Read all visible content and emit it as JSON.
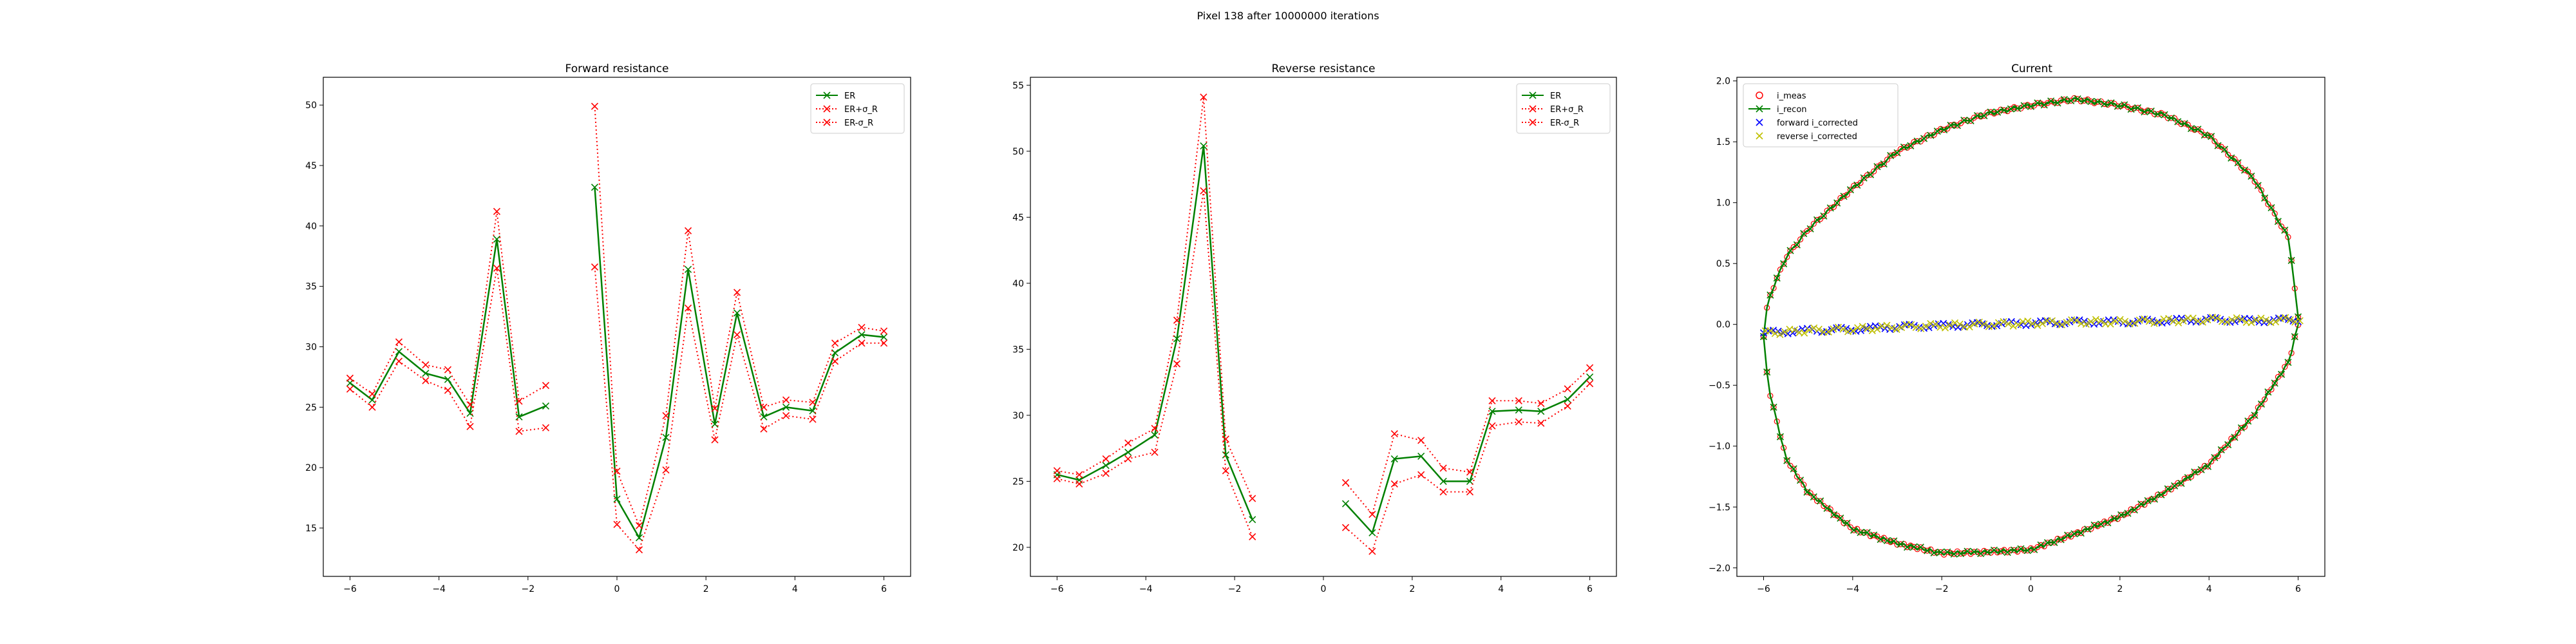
{
  "figure": {
    "suptitle": "Pixel 138 after 10000000 iterations"
  },
  "chart_data": [
    {
      "type": "line",
      "title": "Forward resistance",
      "xlabel": "",
      "ylabel": "",
      "xlim": [
        -6.6,
        6.6
      ],
      "ylim": [
        11,
        52.3
      ],
      "xticks": [
        -6,
        -4,
        -2,
        0,
        2,
        4,
        6
      ],
      "yticks": [
        15,
        20,
        25,
        30,
        35,
        40,
        45,
        50
      ],
      "legend_loc": "upper right",
      "series": [
        {
          "name": "ER",
          "color": "#008000",
          "style": "solid",
          "marker": "x",
          "points": [
            [
              -6,
              27
            ],
            [
              -5.5,
              25.6
            ],
            [
              -4.9,
              29.6
            ],
            [
              -4.3,
              27.8
            ],
            [
              -3.8,
              27.3
            ],
            [
              -3.3,
              24.5
            ],
            [
              -2.7,
              38.9
            ],
            [
              -2.2,
              24.2
            ],
            [
              -1.6,
              25.1
            ],
            null,
            [
              -0.5,
              43.2
            ],
            [
              0,
              17.4
            ],
            [
              0.5,
              14.2
            ],
            [
              1.1,
              22.5
            ],
            [
              1.6,
              36.4
            ],
            [
              2.2,
              23.6
            ],
            [
              2.7,
              32.8
            ],
            [
              3.3,
              24.2
            ],
            [
              3.8,
              25
            ],
            [
              4.4,
              24.7
            ],
            [
              4.9,
              29.5
            ],
            [
              5.5,
              31
            ],
            [
              6,
              30.8
            ]
          ]
        },
        {
          "name": "ER+σ_R",
          "color": "#ff0000",
          "style": "dotted",
          "marker": "x",
          "points": [
            [
              -6,
              27.4
            ],
            [
              -5.5,
              26.1
            ],
            [
              -4.9,
              30.4
            ],
            [
              -4.3,
              28.5
            ],
            [
              -3.8,
              28.1
            ],
            [
              -3.3,
              25.2
            ],
            [
              -2.7,
              41.2
            ],
            [
              -2.2,
              25.5
            ],
            [
              -1.6,
              26.8
            ],
            null,
            [
              -0.5,
              49.9
            ],
            [
              0,
              19.7
            ],
            [
              0.5,
              15.2
            ],
            [
              1.1,
              24.3
            ],
            [
              1.6,
              39.6
            ],
            [
              2.2,
              24.9
            ],
            [
              2.7,
              34.5
            ],
            [
              3.3,
              25
            ],
            [
              3.8,
              25.6
            ],
            [
              4.4,
              25.4
            ],
            [
              4.9,
              30.3
            ],
            [
              5.5,
              31.6
            ],
            [
              6,
              31.3
            ]
          ]
        },
        {
          "name": "ER-σ_R",
          "color": "#ff0000",
          "style": "dotted",
          "marker": "x",
          "points": [
            [
              -6,
              26.5
            ],
            [
              -5.5,
              25
            ],
            [
              -4.9,
              28.8
            ],
            [
              -4.3,
              27.2
            ],
            [
              -3.8,
              26.4
            ],
            [
              -3.3,
              23.4
            ],
            [
              -2.7,
              36.5
            ],
            [
              -2.2,
              23
            ],
            [
              -1.6,
              23.3
            ],
            null,
            [
              -0.5,
              36.6
            ],
            [
              0,
              15.3
            ],
            [
              0.5,
              13.2
            ],
            [
              1.1,
              19.8
            ],
            [
              1.6,
              33.2
            ],
            [
              2.2,
              22.3
            ],
            [
              2.7,
              31
            ],
            [
              3.3,
              23.2
            ],
            [
              3.8,
              24.3
            ],
            [
              4.4,
              24
            ],
            [
              4.9,
              28.8
            ],
            [
              5.5,
              30.3
            ],
            [
              6,
              30.3
            ]
          ]
        }
      ]
    },
    {
      "type": "line",
      "title": "Reverse resistance",
      "xlabel": "",
      "ylabel": "",
      "xlim": [
        -6.6,
        6.6
      ],
      "ylim": [
        17.8,
        55.6
      ],
      "xticks": [
        -6,
        -4,
        -2,
        0,
        2,
        4,
        6
      ],
      "yticks": [
        20,
        25,
        30,
        35,
        40,
        45,
        50,
        55
      ],
      "legend_loc": "upper right",
      "series": [
        {
          "name": "ER",
          "color": "#008000",
          "style": "solid",
          "marker": "x",
          "points": [
            [
              -6,
              25.5
            ],
            [
              -5.5,
              25.1
            ],
            [
              -4.9,
              26.2
            ],
            [
              -4.4,
              27.2
            ],
            [
              -3.8,
              28.5
            ],
            [
              -3.3,
              35.8
            ],
            [
              -2.7,
              50.4
            ],
            [
              -2.2,
              27
            ],
            [
              -1.6,
              22.1
            ],
            null,
            [
              0.5,
              23.3
            ],
            [
              1.1,
              21.1
            ],
            [
              1.6,
              26.7
            ],
            [
              2.2,
              26.9
            ],
            [
              2.7,
              25
            ],
            [
              3.3,
              25
            ],
            [
              3.8,
              30.3
            ],
            [
              4.4,
              30.4
            ],
            [
              4.9,
              30.3
            ],
            [
              5.5,
              31.2
            ],
            [
              6,
              32.9
            ]
          ]
        },
        {
          "name": "ER+σ_R",
          "color": "#ff0000",
          "style": "dotted",
          "marker": "x",
          "points": [
            [
              -6,
              25.8
            ],
            [
              -5.5,
              25.5
            ],
            [
              -4.9,
              26.7
            ],
            [
              -4.4,
              27.9
            ],
            [
              -3.8,
              29
            ],
            [
              -3.3,
              37.2
            ],
            [
              -2.7,
              54.1
            ],
            [
              -2.2,
              28.2
            ],
            [
              -1.6,
              23.7
            ],
            null,
            [
              0.5,
              24.9
            ],
            [
              1.1,
              22.5
            ],
            [
              1.6,
              28.6
            ],
            [
              2.2,
              28.1
            ],
            [
              2.7,
              26
            ],
            [
              3.3,
              25.7
            ],
            [
              3.8,
              31.1
            ],
            [
              4.4,
              31.1
            ],
            [
              4.9,
              30.9
            ],
            [
              5.5,
              32
            ],
            [
              6,
              33.6
            ]
          ]
        },
        {
          "name": "ER-σ_R",
          "color": "#ff0000",
          "style": "dotted",
          "marker": "x",
          "points": [
            [
              -6,
              25.2
            ],
            [
              -5.5,
              24.8
            ],
            [
              -4.9,
              25.6
            ],
            [
              -4.4,
              26.7
            ],
            [
              -3.8,
              27.2
            ],
            [
              -3.3,
              33.9
            ],
            [
              -2.7,
              47
            ],
            [
              -2.2,
              25.8
            ],
            [
              -1.6,
              20.8
            ],
            null,
            [
              0.5,
              21.5
            ],
            [
              1.1,
              19.7
            ],
            [
              1.6,
              24.8
            ],
            [
              2.2,
              25.5
            ],
            [
              2.7,
              24.2
            ],
            [
              3.3,
              24.2
            ],
            [
              3.8,
              29.2
            ],
            [
              4.4,
              29.5
            ],
            [
              4.9,
              29.4
            ],
            [
              5.5,
              30.7
            ],
            [
              6,
              32.4
            ]
          ]
        }
      ]
    },
    {
      "type": "scatter",
      "title": "Current",
      "xlabel": "",
      "ylabel": "",
      "xlim": [
        -6.6,
        6.6
      ],
      "ylim": [
        -2.07,
        2.03
      ],
      "xticks": [
        -6,
        -4,
        -2,
        0,
        2,
        4,
        6
      ],
      "yticks": [
        -2.0,
        -1.5,
        -1.0,
        -0.5,
        0.0,
        0.5,
        1.0,
        1.5,
        2.0
      ],
      "ytick_labels": [
        "−2.0",
        "−1.5",
        "−1.0",
        "−0.5",
        "0.0",
        "0.5",
        "1.0",
        "1.5",
        "2.0"
      ],
      "legend_loc": "upper left",
      "loop": {
        "x_range": [
          -6,
          6
        ],
        "upper_branch": [
          [
            -6,
            -0.1
          ],
          [
            -5.9,
            0.2
          ],
          [
            -5.5,
            0.55
          ],
          [
            -5,
            0.78
          ],
          [
            -4,
            1.12
          ],
          [
            -3,
            1.42
          ],
          [
            -2,
            1.6
          ],
          [
            -1,
            1.73
          ],
          [
            0,
            1.8
          ],
          [
            1,
            1.85
          ],
          [
            2,
            1.8
          ],
          [
            3,
            1.72
          ],
          [
            4,
            1.55
          ],
          [
            5,
            1.2
          ],
          [
            5.8,
            0.7
          ],
          [
            6,
            0.05
          ]
        ],
        "lower_branch": [
          [
            -6,
            -0.1
          ],
          [
            -5.9,
            -0.5
          ],
          [
            -5.5,
            -1.1
          ],
          [
            -5,
            -1.38
          ],
          [
            -4,
            -1.68
          ],
          [
            -3,
            -1.8
          ],
          [
            -2,
            -1.88
          ],
          [
            -1,
            -1.87
          ],
          [
            0,
            -1.85
          ],
          [
            1,
            -1.72
          ],
          [
            2,
            -1.58
          ],
          [
            3,
            -1.38
          ],
          [
            4,
            -1.15
          ],
          [
            5,
            -0.75
          ],
          [
            5.8,
            -0.3
          ],
          [
            6,
            0
          ]
        ]
      },
      "corrected_currents": [
        [
          -6,
          -0.07
        ],
        [
          -5,
          -0.05
        ],
        [
          -4,
          -0.04
        ],
        [
          -3,
          -0.02
        ],
        [
          -2,
          -0.01
        ],
        [
          -1,
          0
        ],
        [
          0,
          0.01
        ],
        [
          1,
          0.02
        ],
        [
          2,
          0.02
        ],
        [
          3,
          0.03
        ],
        [
          4,
          0.04
        ],
        [
          5,
          0.03
        ],
        [
          6,
          0.04
        ]
      ],
      "series": [
        {
          "name": "i_meas",
          "color": "#ff0000",
          "marker": "circle-open"
        },
        {
          "name": "i_recon",
          "color": "#008000",
          "marker": "x",
          "style": "solid"
        },
        {
          "name": "forward i_corrected",
          "color": "#0000ff",
          "marker": "x"
        },
        {
          "name": "reverse i_corrected",
          "color": "#bfbf00",
          "marker": "x"
        }
      ]
    }
  ]
}
